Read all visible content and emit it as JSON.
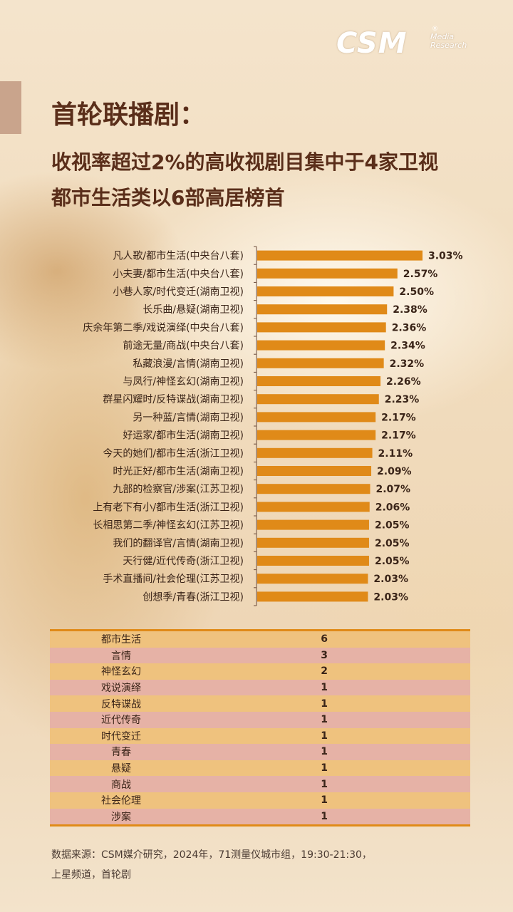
{
  "header": {
    "title": "首轮联播剧：",
    "subtitle_line1": "收视率超过2%的高收视剧目集中于4家卫视",
    "subtitle_line2": "都市生活类以6部高居榜首",
    "logo_text": "CSM",
    "logo_sub1": "Media",
    "logo_sub2": "Research",
    "logo_reg": "®"
  },
  "colors": {
    "bar": "#e08a18",
    "title": "#5a2e1a",
    "axis": "#6a4a3a"
  },
  "chart_data": {
    "type": "bar",
    "orientation": "horizontal",
    "categories": [
      "凡人歌/都市生活(中央台八套)",
      "小夫妻/都市生活(中央台八套)",
      "小巷人家/时代变迁(湖南卫视)",
      "长乐曲/悬疑(湖南卫视)",
      "庆余年第二季/戏说演绎(中央台八套)",
      "前途无量/商战(中央台八套)",
      "私藏浪漫/言情(湖南卫视)",
      "与凤行/神怪玄幻(湖南卫视)",
      "群星闪耀时/反特谍战(湖南卫视)",
      "另一种蓝/言情(湖南卫视)",
      "好运家/都市生活(湖南卫视)",
      "今天的她们/都市生活(浙江卫视)",
      "时光正好/都市生活(湖南卫视)",
      "九部的检察官/涉案(江苏卫视)",
      "上有老下有小/都市生活(浙江卫视)",
      "长相思第二季/神怪玄幻(江苏卫视)",
      "我们的翻译官/言情(湖南卫视)",
      "天行健/近代传奇(浙江卫视)",
      "手术直播间/社会伦理(江苏卫视)",
      "创想季/青春(浙江卫视)"
    ],
    "values": [
      3.03,
      2.57,
      2.5,
      2.38,
      2.36,
      2.34,
      2.32,
      2.26,
      2.23,
      2.17,
      2.17,
      2.11,
      2.09,
      2.07,
      2.06,
      2.05,
      2.05,
      2.05,
      2.03,
      2.03
    ],
    "value_labels": [
      "3.03%",
      "2.57%",
      "2.50%",
      "2.38%",
      "2.36%",
      "2.34%",
      "2.32%",
      "2.26%",
      "2.23%",
      "2.17%",
      "2.17%",
      "2.11%",
      "2.09%",
      "2.07%",
      "2.06%",
      "2.05%",
      "2.05%",
      "2.05%",
      "2.03%",
      "2.03%"
    ],
    "xlim": [
      0,
      3.03
    ],
    "grid": false,
    "legend": "none"
  },
  "genre_table": {
    "rows": [
      {
        "genre": "都市生活",
        "count": "6"
      },
      {
        "genre": "言情",
        "count": "3"
      },
      {
        "genre": "神怪玄幻",
        "count": "2"
      },
      {
        "genre": "戏说演绎",
        "count": "1"
      },
      {
        "genre": "反特谍战",
        "count": "1"
      },
      {
        "genre": "近代传奇",
        "count": "1"
      },
      {
        "genre": "时代变迁",
        "count": "1"
      },
      {
        "genre": "青春",
        "count": "1"
      },
      {
        "genre": "悬疑",
        "count": "1"
      },
      {
        "genre": "商战",
        "count": "1"
      },
      {
        "genre": "社会伦理",
        "count": "1"
      },
      {
        "genre": "涉案",
        "count": "1"
      }
    ]
  },
  "footer": {
    "line1": "数据来源：CSM媒介研究，2024年，71测量仪城市组，19:30-21:30，",
    "line2": "上星频道，首轮剧"
  }
}
